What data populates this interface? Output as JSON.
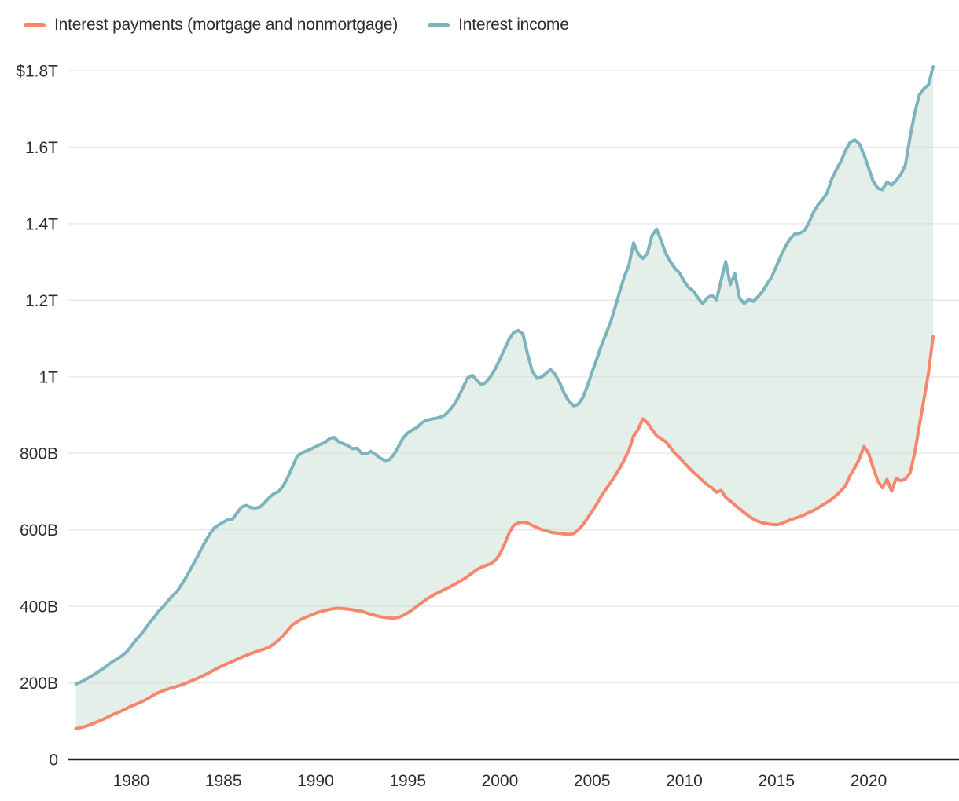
{
  "page": {
    "background": "#ffffff"
  },
  "legend": {
    "items": [
      {
        "label": "Interest payments (mortgage and nonmortgage)",
        "color": "#f4876c",
        "series_key": "payments"
      },
      {
        "label": "Interest income",
        "color": "#7db3bc",
        "series_key": "income"
      }
    ]
  },
  "axis": {
    "grid_color": "#e8e8e8",
    "zero_line_color": "#1f1f1f",
    "tick_label_color": "#2e2e2e"
  },
  "chart_data": {
    "type": "area",
    "title": "",
    "xlabel": "",
    "ylabel": "",
    "y_unit": "billions of US dollars",
    "x_start": 1977,
    "x_step": 0.25,
    "x_end": 2023.5,
    "xlim": [
      1976.6,
      2023.9
    ],
    "ylim": [
      0,
      1850
    ],
    "grid": true,
    "legend_position": "top-left",
    "fill_between": {
      "color_rgb": [
        199,
        223,
        209
      ],
      "opacity": 0.5
    },
    "x_ticks": [
      1980,
      1985,
      1990,
      1995,
      2000,
      2005,
      2010,
      2015,
      2020
    ],
    "y_ticks": [
      {
        "value": 0,
        "label": "0"
      },
      {
        "value": 200,
        "label": "200B"
      },
      {
        "value": 400,
        "label": "400B"
      },
      {
        "value": 600,
        "label": "600B"
      },
      {
        "value": 800,
        "label": "800B"
      },
      {
        "value": 1000,
        "label": "1T"
      },
      {
        "value": 1200,
        "label": "1.2T"
      },
      {
        "value": 1400,
        "label": "1.4T"
      },
      {
        "value": 1600,
        "label": "1.6T"
      },
      {
        "value": 1800,
        "label": "$1.8T"
      }
    ],
    "series": [
      {
        "key": "payments",
        "name": "Interest payments (mortgage and nonmortgage)",
        "color": "#f4876c",
        "line_width": 4,
        "values": [
          80,
          83,
          86,
          90,
          95,
          100,
          105,
          111,
          117,
          122,
          127,
          133,
          139,
          144,
          149,
          155,
          162,
          169,
          175,
          180,
          184,
          188,
          191,
          195,
          200,
          205,
          210,
          215,
          221,
          227,
          234,
          240,
          246,
          251,
          256,
          262,
          267,
          272,
          277,
          281,
          285,
          289,
          294,
          302,
          312,
          324,
          338,
          352,
          360,
          367,
          372,
          377,
          382,
          386,
          389,
          392,
          394,
          395,
          394,
          393,
          391,
          389,
          387,
          383,
          379,
          376,
          373,
          371,
          370,
          369,
          371,
          376,
          383,
          391,
          400,
          409,
          418,
          425,
          432,
          438,
          444,
          450,
          456,
          463,
          470,
          478,
          487,
          496,
          502,
          507,
          511,
          520,
          537,
          562,
          592,
          612,
          618,
          620,
          618,
          612,
          606,
          601,
          598,
          594,
          592,
          591,
          589,
          588,
          590,
          600,
          613,
          630,
          648,
          667,
          688,
          706,
          723,
          741,
          761,
          783,
          808,
          845,
          862,
          890,
          880,
          862,
          846,
          838,
          830,
          815,
          800,
          788,
          775,
          762,
          750,
          740,
          728,
          718,
          710,
          698,
          703,
          685,
          675,
          665,
          655,
          645,
          636,
          628,
          622,
          618,
          616,
          614,
          613,
          616,
          621,
          626,
          630,
          634,
          639,
          645,
          650,
          657,
          665,
          672,
          680,
          690,
          702,
          715,
          742,
          762,
          785,
          818,
          800,
          762,
          728,
          710,
          732,
          701,
          735,
          728,
          733,
          748,
          800,
          870,
          940,
          1010,
          1105
        ]
      },
      {
        "key": "income",
        "name": "Interest income",
        "color": "#7db3bc",
        "line_width": 4,
        "values": [
          197,
          202,
          208,
          215,
          222,
          230,
          238,
          247,
          256,
          263,
          271,
          281,
          296,
          312,
          325,
          340,
          358,
          372,
          388,
          400,
          415,
          428,
          440,
          458,
          478,
          500,
          522,
          545,
          568,
          588,
          605,
          613,
          620,
          627,
          628,
          645,
          660,
          664,
          658,
          657,
          660,
          672,
          685,
          695,
          700,
          715,
          738,
          765,
          792,
          801,
          806,
          811,
          817,
          823,
          828,
          838,
          842,
          830,
          825,
          820,
          812,
          813,
          800,
          798,
          805,
          797,
          788,
          781,
          783,
          797,
          818,
          840,
          853,
          861,
          867,
          879,
          886,
          889,
          891,
          894,
          899,
          911,
          926,
          947,
          972,
          997,
          1004,
          991,
          979,
          986,
          1001,
          1021,
          1046,
          1072,
          1098,
          1116,
          1121,
          1112,
          1060,
          1016,
          996,
          999,
          1009,
          1019,
          1006,
          984,
          956,
          936,
          924,
          928,
          946,
          976,
          1012,
          1046,
          1081,
          1111,
          1142,
          1181,
          1223,
          1261,
          1292,
          1350,
          1322,
          1309,
          1322,
          1369,
          1386,
          1356,
          1322,
          1301,
          1283,
          1271,
          1249,
          1233,
          1223,
          1206,
          1191,
          1206,
          1213,
          1201,
          1252,
          1301,
          1241,
          1269,
          1206,
          1191,
          1203,
          1197,
          1209,
          1223,
          1243,
          1261,
          1289,
          1317,
          1341,
          1361,
          1373,
          1375,
          1381,
          1401,
          1429,
          1449,
          1463,
          1481,
          1516,
          1541,
          1563,
          1591,
          1613,
          1619,
          1609,
          1581,
          1546,
          1511,
          1493,
          1489,
          1509,
          1501,
          1513,
          1529,
          1553,
          1626,
          1689,
          1736,
          1753,
          1763,
          1810
        ]
      }
    ]
  }
}
